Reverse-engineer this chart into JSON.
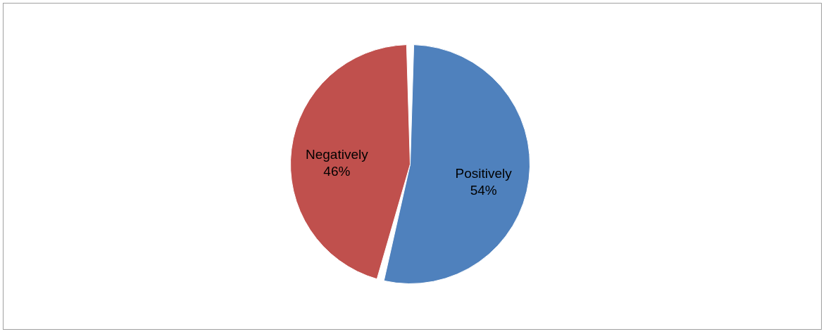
{
  "chart_data": {
    "type": "pie",
    "categories": [
      "Positively",
      "Negatively"
    ],
    "values": [
      54,
      46
    ],
    "colors": [
      "#4f81bd",
      "#c0504d"
    ],
    "value_labels": [
      "54%",
      "46%"
    ],
    "legend": false
  }
}
